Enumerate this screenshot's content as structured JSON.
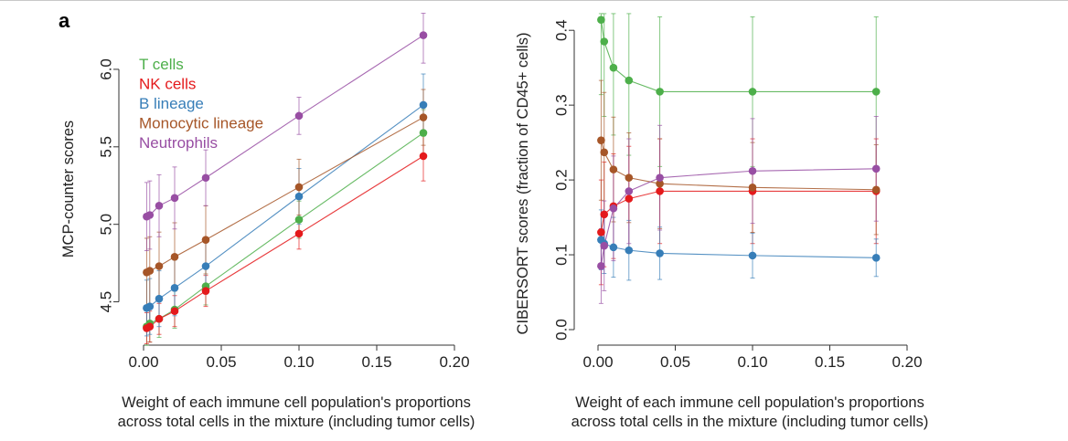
{
  "panel_label": "a",
  "chart_data": [
    {
      "type": "line",
      "xlabel": [
        "Weight of each immune cell population's proportions",
        "across total cells in the mixture (including tumor cells)"
      ],
      "ylabel": "MCP-counter scores",
      "xlim": [
        0,
        0.2
      ],
      "ylim": [
        4.25,
        6.3
      ],
      "xticks": [
        0.0,
        0.05,
        0.1,
        0.15,
        0.2
      ],
      "xtick_labels": [
        "0.00",
        "0.05",
        "0.10",
        "0.15",
        "0.20"
      ],
      "yticks": [
        4.5,
        5.0,
        5.5,
        6.0
      ],
      "ytick_labels": [
        "4.5",
        "5.0",
        "5.5",
        "6.0"
      ],
      "legend_position": "top-left",
      "x": [
        0.002,
        0.004,
        0.01,
        0.02,
        0.04,
        0.1,
        0.18
      ],
      "series": [
        {
          "name": "T cells",
          "color": "#4daf4a",
          "values": [
            4.34,
            4.36,
            4.39,
            4.45,
            4.6,
            5.03,
            5.59
          ],
          "err": [
            0.12,
            0.12,
            0.12,
            0.12,
            0.12,
            0.12,
            0.15
          ]
        },
        {
          "name": "NK cells",
          "color": "#e41a1c",
          "values": [
            4.33,
            4.34,
            4.39,
            4.44,
            4.57,
            4.94,
            5.44
          ],
          "err": [
            0.1,
            0.1,
            0.1,
            0.1,
            0.1,
            0.1,
            0.16
          ]
        },
        {
          "name": "B lineage",
          "color": "#377eb8",
          "values": [
            4.46,
            4.47,
            4.52,
            4.59,
            4.73,
            5.18,
            5.77
          ],
          "err": [
            0.18,
            0.18,
            0.18,
            0.18,
            0.18,
            0.18,
            0.2
          ]
        },
        {
          "name": "Monocytic lineage",
          "color": "#a65628",
          "values": [
            4.69,
            4.7,
            4.73,
            4.79,
            4.9,
            5.24,
            5.69
          ],
          "err": [
            0.22,
            0.22,
            0.22,
            0.22,
            0.22,
            0.18,
            0.18
          ]
        },
        {
          "name": "Neutrophils",
          "color": "#984ea3",
          "values": [
            5.05,
            5.06,
            5.12,
            5.17,
            5.3,
            5.7,
            6.22
          ],
          "err": [
            0.22,
            0.22,
            0.2,
            0.2,
            0.18,
            0.12,
            0.18
          ]
        }
      ]
    },
    {
      "type": "line",
      "xlabel": [
        "Weight of each immune cell population's proportions",
        "across total cells in the mixture (including tumor cells)"
      ],
      "ylabel": "CIBERSORT scores (fraction of CD45+ cells)",
      "xlim": [
        0,
        0.2
      ],
      "ylim": [
        0,
        0.41
      ],
      "xticks": [
        0.0,
        0.05,
        0.1,
        0.15,
        0.2
      ],
      "xtick_labels": [
        "0.00",
        "0.05",
        "0.10",
        "0.15",
        "0.20"
      ],
      "yticks": [
        0.0,
        0.1,
        0.2,
        0.3,
        0.4
      ],
      "ytick_labels": [
        "0.0",
        "0.1",
        "0.2",
        "0.3",
        "0.4"
      ],
      "x": [
        0.002,
        0.004,
        0.01,
        0.02,
        0.04,
        0.1,
        0.18
      ],
      "series": [
        {
          "name": "T cells",
          "color": "#4daf4a",
          "values": [
            0.414,
            0.385,
            0.35,
            0.333,
            0.318,
            0.318,
            0.318
          ],
          "err": [
            0.1,
            0.1,
            0.09,
            0.1,
            0.1,
            0.1,
            0.1
          ]
        },
        {
          "name": "NK cells",
          "color": "#e41a1c",
          "values": [
            0.13,
            0.154,
            0.165,
            0.175,
            0.185,
            0.185,
            0.185
          ],
          "err": [
            0.07,
            0.07,
            0.07,
            0.07,
            0.07,
            0.07,
            0.07
          ]
        },
        {
          "name": "B lineage",
          "color": "#377eb8",
          "values": [
            0.12,
            0.115,
            0.11,
            0.106,
            0.102,
            0.099,
            0.096
          ],
          "err": [
            0.04,
            0.04,
            0.04,
            0.04,
            0.035,
            0.03,
            0.025
          ]
        },
        {
          "name": "Monocytic lineage",
          "color": "#a65628",
          "values": [
            0.253,
            0.237,
            0.214,
            0.203,
            0.195,
            0.19,
            0.187
          ],
          "err": [
            0.08,
            0.08,
            0.07,
            0.06,
            0.06,
            0.06,
            0.06
          ]
        },
        {
          "name": "Neutrophils",
          "color": "#984ea3",
          "values": [
            0.085,
            0.112,
            0.162,
            0.185,
            0.203,
            0.212,
            0.215
          ],
          "err": [
            0.05,
            0.06,
            0.07,
            0.07,
            0.07,
            0.07,
            0.07
          ]
        }
      ]
    }
  ]
}
